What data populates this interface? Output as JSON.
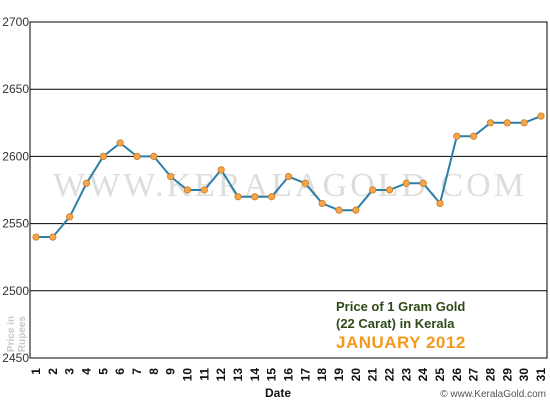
{
  "chart_data": {
    "type": "line",
    "title_lines": [
      "Price of 1 Gram Gold",
      "(22 Carat) in Kerala"
    ],
    "subtitle": "JANUARY 2012",
    "xlabel": "Date",
    "ylabel_lines": [
      "Price in",
      "Rupees"
    ],
    "x": [
      1,
      2,
      3,
      4,
      5,
      6,
      7,
      8,
      9,
      10,
      11,
      12,
      13,
      14,
      15,
      16,
      17,
      18,
      19,
      20,
      21,
      22,
      23,
      24,
      25,
      26,
      27,
      28,
      29,
      30,
      31
    ],
    "values": [
      2540,
      2540,
      2555,
      2580,
      2600,
      2610,
      2600,
      2600,
      2585,
      2575,
      2575,
      2590,
      2570,
      2570,
      2570,
      2585,
      2580,
      2565,
      2560,
      2560,
      2575,
      2575,
      2580,
      2580,
      2565,
      2615,
      2615,
      2625,
      2625,
      2625,
      2630
    ],
    "ylim": [
      2450,
      2700
    ],
    "yticks": [
      2450,
      2500,
      2550,
      2600,
      2650,
      2700
    ],
    "grid": true,
    "line_color": "#2e7fa8",
    "marker_color": "#f5a64a",
    "title_color": "#2e4a17",
    "subtitle_color": "#f39a1e"
  },
  "watermark": "WWW.KERALAGOLD.COM",
  "footer": "© www.KeralaGold.com"
}
